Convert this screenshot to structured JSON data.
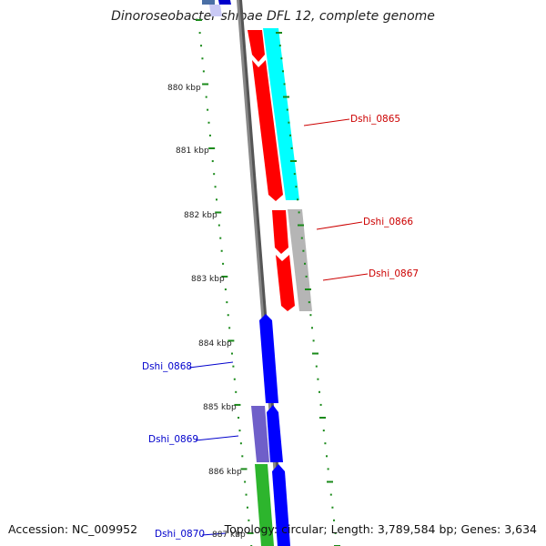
{
  "title": "Dinoroseobacter shibae DFL 12, complete genome",
  "accession": "Accession: NC_009952",
  "topology": "Topology: circular; Length: 3,789,584 bp; Genes: 3,634",
  "ticks": [
    "880 kbp",
    "881 kbp",
    "882 kbp",
    "883 kbp",
    "884 kbp",
    "885 kbp",
    "886 kbp",
    "887 kbp"
  ],
  "genes": [
    {
      "label": "Dshi_0865",
      "color": "#cc0000"
    },
    {
      "label": "Dshi_0866",
      "color": "#cc0000"
    },
    {
      "label": "Dshi_0867",
      "color": "#cc0000"
    },
    {
      "label": "Dshi_0868",
      "color": "#0000cc"
    },
    {
      "label": "Dshi_0869",
      "color": "#0000cc"
    },
    {
      "label": "Dshi_0870",
      "color": "#0000cc"
    }
  ]
}
